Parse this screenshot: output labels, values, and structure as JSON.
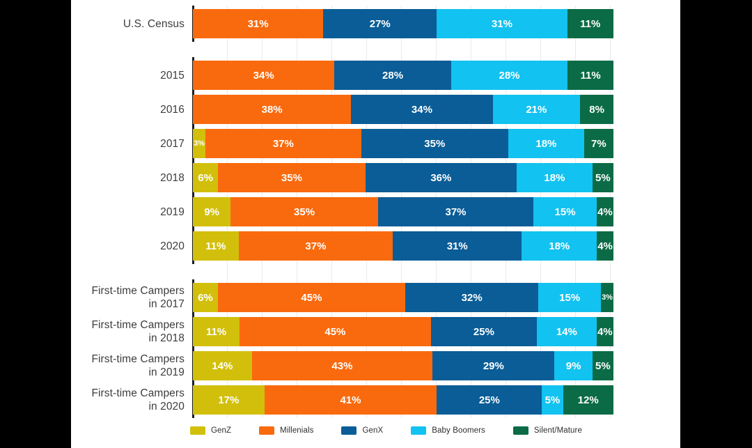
{
  "chart_data": {
    "type": "bar",
    "subtype": "horizontal-stacked-percent",
    "title": "",
    "xlabel": "",
    "ylabel": "",
    "xlim": [
      0,
      100
    ],
    "grid": "vertical-light-gray",
    "legend_position": "bottom",
    "series_names": [
      "GenZ",
      "Millenials",
      "GenX",
      "Baby Boomers",
      "Silent/Mature"
    ],
    "series_colors": [
      "#d2bf0b",
      "#f96a0e",
      "#0a5d97",
      "#12c2f0",
      "#0c6b47"
    ],
    "value_suffix": "%",
    "groups": [
      {
        "name": "census",
        "rows": [
          {
            "label_lines": [
              "U.S. Census"
            ],
            "values": [
              0,
              31,
              27,
              31,
              11
            ]
          }
        ]
      },
      {
        "name": "all-campers-by-year",
        "rows": [
          {
            "label_lines": [
              "2015"
            ],
            "values": [
              0,
              34,
              28,
              28,
              11
            ]
          },
          {
            "label_lines": [
              "2016"
            ],
            "values": [
              0,
              38,
              34,
              21,
              8
            ]
          },
          {
            "label_lines": [
              "2017"
            ],
            "values": [
              3,
              37,
              35,
              18,
              7
            ]
          },
          {
            "label_lines": [
              "2018"
            ],
            "values": [
              6,
              35,
              36,
              18,
              5
            ]
          },
          {
            "label_lines": [
              "2019"
            ],
            "values": [
              9,
              35,
              37,
              15,
              4
            ]
          },
          {
            "label_lines": [
              "2020"
            ],
            "values": [
              11,
              37,
              31,
              18,
              4
            ]
          }
        ]
      },
      {
        "name": "first-time-campers",
        "rows": [
          {
            "label_lines": [
              "First-time Campers",
              "in 2017"
            ],
            "values": [
              6,
              45,
              32,
              15,
              3
            ]
          },
          {
            "label_lines": [
              "First-time Campers",
              "in 2018"
            ],
            "values": [
              11,
              45,
              25,
              14,
              4
            ]
          },
          {
            "label_lines": [
              "First-time Campers",
              "in 2019"
            ],
            "values": [
              14,
              43,
              29,
              9,
              5
            ]
          },
          {
            "label_lines": [
              "First-time Campers",
              "in 2020"
            ],
            "values": [
              17,
              41,
              25,
              5,
              12
            ]
          }
        ]
      }
    ],
    "legend": [
      {
        "label": "GenZ",
        "color": "#d2bf0b"
      },
      {
        "label": "Millenials",
        "color": "#f96a0e"
      },
      {
        "label": "GenX",
        "color": "#0a5d97"
      },
      {
        "label": "Baby Boomers",
        "color": "#12c2f0"
      },
      {
        "label": "Silent/Mature",
        "color": "#0c6b47"
      }
    ],
    "colors": {
      "background_letterbox": "#000000",
      "background_chart": "#ffffff",
      "axis_line": "#1d1d1d",
      "gridline": "#eaeaea",
      "row_label_text": "#3d3d3d",
      "segment_value_text": "#ffffff"
    }
  }
}
